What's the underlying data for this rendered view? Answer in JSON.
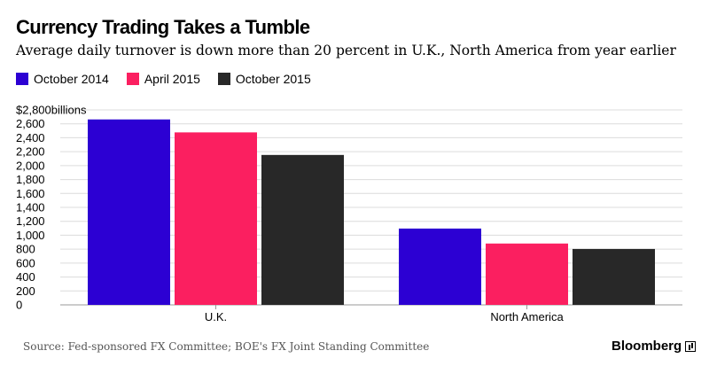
{
  "chart_data": {
    "type": "bar",
    "title": "Currency Trading Takes a Tumble",
    "subtitle": "Average daily turnover is down more than 20 percent in U.K., North America from year earlier",
    "categories": [
      "U.K.",
      "North America"
    ],
    "series": [
      {
        "name": "October 2014",
        "color": "#2c00d3",
        "values": [
          2663,
          1096
        ]
      },
      {
        "name": "April 2015",
        "color": "#fb1f60",
        "values": [
          2477,
          881
        ]
      },
      {
        "name": "October 2015",
        "color": "#282828",
        "values": [
          2153,
          803
        ]
      }
    ],
    "ylabel": "",
    "yunit_prefix": "$",
    "yunit_suffix": "billions",
    "yticks": [
      0,
      200,
      400,
      600,
      800,
      1000,
      1200,
      1400,
      1600,
      1800,
      2000,
      2200,
      2400,
      2600,
      2800
    ],
    "ytick_labels": [
      "0",
      "200",
      "400",
      "600",
      "800",
      "1,000",
      "1,200",
      "1,400",
      "1,600",
      "1,800",
      "2,000",
      "2,200",
      "2,400",
      "2,600",
      "$2,800billions"
    ],
    "ylim": [
      0,
      2800
    ],
    "grid": true,
    "legend_position": "top-left"
  },
  "footer": {
    "source": "Source: Fed-sponsored FX Committee; BOE's FX Joint Standing Committee",
    "brand": "Bloomberg"
  }
}
